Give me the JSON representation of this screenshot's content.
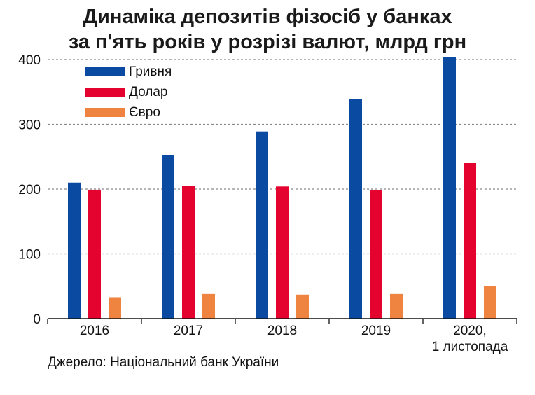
{
  "title_lines": [
    "Динаміка депозитів фізосіб у банках",
    "за п'ять років у розрізі валют, млрд грн"
  ],
  "source": "Джерело: Національний банк України",
  "chart_data": {
    "type": "bar",
    "title": "Динаміка депозитів фізосіб у банках за п'ять років у розрізі валют, млрд грн",
    "categories": [
      [
        "2016"
      ],
      [
        "2017"
      ],
      [
        "2018"
      ],
      [
        "2019"
      ],
      [
        "2020,",
        "1 листопада"
      ]
    ],
    "series": [
      {
        "name": "Гривня",
        "color": "#0a4aa0",
        "values": [
          210,
          252,
          289,
          339,
          404
        ]
      },
      {
        "name": "Долар",
        "color": "#e4032e",
        "values": [
          199,
          205,
          204,
          198,
          240
        ]
      },
      {
        "name": "Євро",
        "color": "#ef8440",
        "values": [
          33,
          38,
          37,
          38,
          50
        ]
      }
    ],
    "ylim": [
      0,
      400
    ],
    "yticks": [
      0,
      100,
      200,
      300,
      400
    ],
    "grid": true,
    "legend_position": "top-left"
  }
}
